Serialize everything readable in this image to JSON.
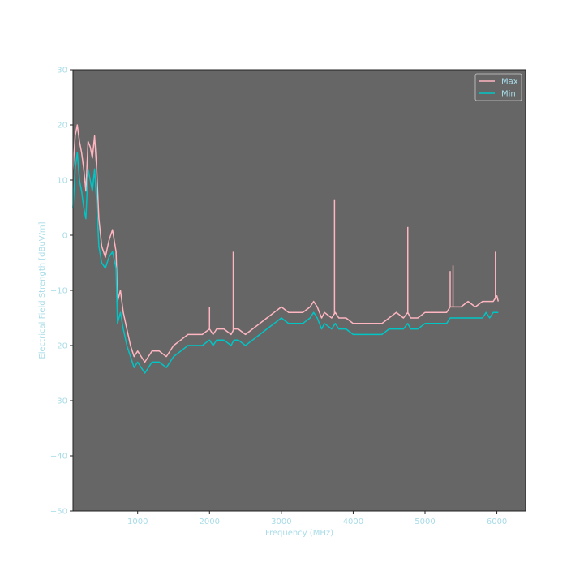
{
  "chart_data": {
    "type": "line",
    "xlabel": "Frequency (MHz)",
    "ylabel": "Electrical Field Strength [dBuV/m]",
    "xlim": [
      100,
      6400
    ],
    "ylim": [
      -50,
      30
    ],
    "xticks": [
      1000,
      2000,
      3000,
      4000,
      5000,
      6000
    ],
    "yticks": [
      -50,
      -40,
      -30,
      -20,
      -10,
      0,
      10,
      20,
      30
    ],
    "grid": false,
    "legend_position": "top-right",
    "colors": {
      "axes_bg": "#666666",
      "tick_text": "#a8dce8",
      "max": "#ffb6c1",
      "min": "#00c5c5"
    },
    "series": [
      {
        "name": "Max",
        "color": "#ffb6c1",
        "x": [
          100,
          130,
          160,
          190,
          220,
          250,
          280,
          310,
          340,
          370,
          400,
          430,
          460,
          500,
          550,
          600,
          650,
          700,
          720,
          760,
          800,
          850,
          900,
          950,
          1000,
          1050,
          1100,
          1150,
          1200,
          1300,
          1400,
          1500,
          1600,
          1700,
          1800,
          1900,
          2000,
          2050,
          2100,
          2200,
          2300,
          2340,
          2400,
          2500,
          2600,
          2700,
          2800,
          2900,
          3000,
          3100,
          3200,
          3300,
          3400,
          3450,
          3500,
          3560,
          3600,
          3700,
          3750,
          3800,
          3900,
          4000,
          4100,
          4200,
          4300,
          4400,
          4500,
          4600,
          4700,
          4760,
          4800,
          4900,
          5000,
          5100,
          5200,
          5300,
          5350,
          5400,
          5500,
          5600,
          5700,
          5800,
          5850,
          5900,
          5950,
          6000,
          6020
        ],
        "y": [
          12,
          18,
          20,
          17,
          15,
          12,
          8,
          17,
          16,
          14,
          18,
          12,
          3,
          -2,
          -4,
          -1,
          1,
          -3,
          -12,
          -10,
          -14,
          -17,
          -20,
          -22,
          -21,
          -22,
          -23,
          -22,
          -21,
          -21,
          -22,
          -20,
          -19,
          -18,
          -18,
          -18,
          -17,
          -18,
          -17,
          -17,
          -18,
          -17,
          -17,
          -18,
          -17,
          -16,
          -15,
          -14,
          -13,
          -14,
          -14,
          -14,
          -13,
          -12,
          -13,
          -15,
          -14,
          -15,
          -14,
          -15,
          -15,
          -16,
          -16,
          -16,
          -16,
          -16,
          -15,
          -14,
          -15,
          -14,
          -15,
          -15,
          -14,
          -14,
          -14,
          -14,
          -13,
          -13,
          -13,
          -12,
          -13,
          -12,
          -12,
          -12,
          -12,
          -11,
          -12
        ]
      },
      {
        "name": "Min",
        "color": "#00c5c5",
        "x": [
          100,
          130,
          160,
          190,
          220,
          250,
          280,
          310,
          340,
          370,
          400,
          430,
          460,
          500,
          550,
          600,
          650,
          700,
          720,
          760,
          800,
          850,
          900,
          950,
          1000,
          1050,
          1100,
          1150,
          1200,
          1300,
          1400,
          1500,
          1600,
          1700,
          1800,
          1900,
          2000,
          2050,
          2100,
          2200,
          2300,
          2340,
          2400,
          2500,
          2600,
          2700,
          2800,
          2900,
          3000,
          3100,
          3200,
          3300,
          3400,
          3450,
          3500,
          3560,
          3600,
          3700,
          3750,
          3800,
          3900,
          4000,
          4100,
          4200,
          4300,
          4400,
          4500,
          4600,
          4700,
          4760,
          4800,
          4900,
          5000,
          5100,
          5200,
          5300,
          5350,
          5400,
          5500,
          5600,
          5700,
          5800,
          5850,
          5900,
          5950,
          6000,
          6020
        ],
        "y": [
          5,
          12,
          15,
          10,
          8,
          5,
          3,
          12,
          10,
          8,
          12,
          6,
          -2,
          -5,
          -6,
          -4,
          -3,
          -6,
          -16,
          -14,
          -17,
          -20,
          -22,
          -24,
          -23,
          -24,
          -25,
          -24,
          -23,
          -23,
          -24,
          -22,
          -21,
          -20,
          -20,
          -20,
          -19,
          -20,
          -19,
          -19,
          -20,
          -19,
          -19,
          -20,
          -19,
          -18,
          -17,
          -16,
          -15,
          -16,
          -16,
          -16,
          -15,
          -14,
          -15,
          -17,
          -16,
          -17,
          -16,
          -17,
          -17,
          -18,
          -18,
          -18,
          -18,
          -18,
          -17,
          -17,
          -17,
          -16,
          -17,
          -17,
          -16,
          -16,
          -16,
          -16,
          -15,
          -15,
          -15,
          -15,
          -15,
          -15,
          -14,
          -15,
          -14,
          -14,
          -14
        ]
      }
    ],
    "spikes": [
      {
        "x": 2000,
        "y": -13
      },
      {
        "x": 2330,
        "y": -3
      },
      {
        "x": 3740,
        "y": 6.5
      },
      {
        "x": 4760,
        "y": 1.5
      },
      {
        "x": 5350,
        "y": -6.5
      },
      {
        "x": 5390,
        "y": -5.5
      },
      {
        "x": 5980,
        "y": -3
      }
    ]
  }
}
